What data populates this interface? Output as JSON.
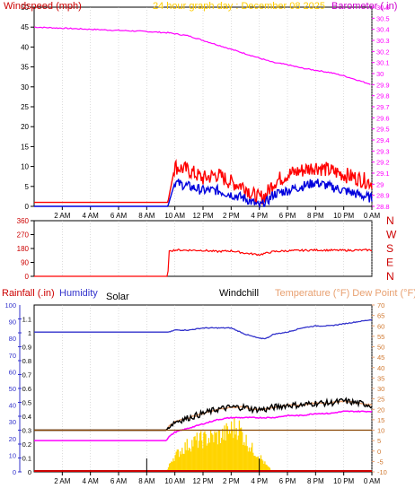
{
  "colors": {
    "wind": "#ff0000",
    "gust": "#ff0000",
    "speed": "#0000dd",
    "baro": "#ff00ff",
    "humidity": "#3333cc",
    "temp": "#e8a070",
    "dew": "#e8a070",
    "windchill": "#000000",
    "solar": "#ffd400",
    "rain": "#cc0000",
    "indoor": "#884400",
    "axis": "#000000",
    "grid": "#bbbbbb",
    "dir": "#ff0000"
  },
  "chart_data": [
    {
      "type": "line",
      "title": "24 hour graph day : December 08 2025",
      "left_label": "Windspeed (mph)",
      "right_label": "Barometer (.in)",
      "x_ticks": [
        "2 AM",
        "4 AM",
        "6 AM",
        "8 AM",
        "10 AM",
        "12 PM",
        "2 PM",
        "4 PM",
        "6 PM",
        "8 PM",
        "10 PM",
        "0 AM"
      ],
      "ylim": [
        0,
        50
      ],
      "y_ticks": [
        "0",
        "5",
        "10",
        "15",
        "20",
        "25",
        "30",
        "35",
        "40",
        "45",
        "50"
      ],
      "y2lim": [
        28.8,
        30.6
      ],
      "y2_ticks": [
        "28.8",
        "28.9",
        "29",
        "29.1",
        "29.2",
        "29.3",
        "29.4",
        "29.5",
        "29.6",
        "29.7",
        "29.8",
        "29.9",
        "30",
        "30.1",
        "30.2",
        "30.3",
        "30.4",
        "30.5",
        "30.6"
      ],
      "x_hours": [
        0,
        2,
        4,
        6,
        8,
        9.3,
        9.5,
        10,
        11,
        12,
        13,
        14,
        15,
        15.5,
        16,
        16.5,
        17,
        18,
        19,
        20,
        21,
        22,
        23,
        24
      ],
      "series": [
        {
          "axis": "right",
          "values": [
            30.42,
            30.41,
            30.4,
            30.39,
            30.38,
            30.37,
            30.37,
            30.36,
            30.34,
            30.3,
            30.26,
            30.22,
            30.18,
            30.16,
            30.14,
            30.12,
            30.1,
            30.08,
            30.05,
            30.03,
            30.01,
            29.98,
            29.94,
            29.9
          ]
        },
        {
          "axis": "left",
          "values": [
            1,
            1,
            1,
            1,
            1,
            1,
            1,
            10,
            9,
            7,
            8,
            6,
            5,
            3,
            2,
            3,
            6,
            8,
            9,
            10,
            9,
            8,
            7,
            6
          ]
        },
        {
          "axis": "left",
          "values": [
            0,
            0,
            0,
            0,
            0,
            0,
            0,
            6,
            5,
            4,
            4,
            3,
            2,
            1,
            0,
            1,
            3,
            4,
            5,
            6,
            5,
            4,
            3,
            2
          ]
        }
      ]
    },
    {
      "type": "line",
      "x_ticks": [
        "2 AM",
        "4 AM",
        "6 AM",
        "8 AM",
        "10 AM",
        "12 PM",
        "2 PM",
        "4 PM",
        "6 PM",
        "8 PM",
        "10 PM",
        "0 AM"
      ],
      "ylim": [
        0,
        360
      ],
      "y_ticks": [
        "0",
        "90",
        "180",
        "270",
        "360"
      ],
      "right_ticks": [
        "N",
        "E",
        "S",
        "W",
        "N"
      ],
      "x_hours": [
        0,
        9.5,
        9.6,
        10,
        12,
        13,
        14,
        15,
        16,
        17,
        18,
        20,
        22,
        24
      ],
      "series": [
        {
          "values": [
            0,
            0,
            165,
            170,
            168,
            160,
            165,
            150,
            140,
            160,
            165,
            170,
            168,
            170
          ]
        }
      ]
    },
    {
      "type": "line",
      "left_label": "Rainfall (.in)",
      "humidity_label": "Humidity",
      "solar_label": "Solar",
      "windchill_label": "Windchill",
      "right_label": "Temperature (°F) Dew Point (°F)",
      "x_ticks": [
        "2 AM",
        "4 AM",
        "6 AM",
        "8 AM",
        "10 AM",
        "12 PM",
        "2 PM",
        "4 PM",
        "6 PM",
        "8 PM",
        "10 PM",
        "0 AM"
      ],
      "humidity_ticks": [
        "0",
        "10",
        "20",
        "30",
        "40",
        "50",
        "60",
        "70",
        "80",
        "90",
        "100"
      ],
      "rain_ticks": [
        "0",
        "0.1",
        "0.2",
        "0.3",
        "0.4",
        "0.5",
        "0.6",
        "0.7",
        "0.8",
        "0.9",
        "1",
        "1.1"
      ],
      "ylim": [
        -10,
        70
      ],
      "y_ticks": [
        "-10",
        "-5",
        "0",
        "5",
        "10",
        "15",
        "20",
        "25",
        "30",
        "35",
        "40",
        "45",
        "50",
        "55",
        "60",
        "65",
        "70"
      ],
      "x_hours": [
        0,
        9.4,
        9.6,
        10,
        11,
        12,
        13,
        14,
        15,
        15.5,
        16,
        16.5,
        17,
        18,
        19,
        20,
        21,
        22,
        23,
        24
      ],
      "series": [
        {
          "values": [
            57,
            57,
            57,
            58,
            58,
            59,
            59,
            59,
            56,
            55,
            54,
            54,
            56,
            57,
            59,
            60,
            60,
            61,
            62,
            63
          ]
        },
        {
          "values": [
            10,
            10,
            12,
            14,
            16,
            18,
            20,
            21,
            21,
            20,
            20,
            20,
            21,
            22,
            22,
            23,
            23,
            24,
            23,
            22
          ]
        },
        {
          "values": [
            5,
            5,
            7,
            9,
            11,
            13,
            15,
            16,
            16,
            16,
            16,
            16,
            16,
            17,
            17,
            18,
            18,
            19,
            19,
            19
          ]
        },
        {
          "values": [
            2,
            2,
            2,
            3,
            4,
            6,
            7,
            8,
            6,
            4,
            3,
            4,
            5,
            6,
            5,
            5,
            5,
            5,
            5,
            5
          ]
        },
        {
          "values": [
            10,
            10,
            10,
            10,
            10,
            10,
            10,
            10,
            10,
            10,
            10,
            10,
            10,
            10,
            10,
            10,
            10,
            10,
            10,
            10
          ]
        }
      ],
      "solar_hours": [
        9.4,
        9.8,
        10.5,
        11,
        11.5,
        12,
        12.5,
        13,
        13.5,
        14,
        14.5,
        15,
        15.5,
        16,
        16.5,
        17
      ],
      "solar_values": [
        0,
        8,
        14,
        17,
        19,
        20,
        21,
        22,
        23,
        26,
        28,
        20,
        14,
        10,
        4,
        0
      ]
    }
  ]
}
